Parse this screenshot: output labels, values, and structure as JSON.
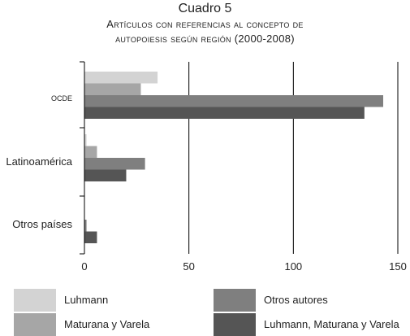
{
  "title_lines": [
    "Cuadro 5",
    "Artículos con referencias al concepto de",
    "autopoiesis según región (2000-2008)"
  ],
  "colors": {
    "Luhmann": "#d3d3d3",
    "Maturana y Varela": "#a6a6a6",
    "Otros autores": "#7f7f7f",
    "Luhmann, Maturana y Varela": "#555555"
  },
  "chart_data": {
    "type": "bar",
    "orientation": "horizontal",
    "categories": [
      "OCDE",
      "Latinoamérica",
      "Otros países"
    ],
    "series": [
      {
        "name": "Luhmann",
        "values": [
          35,
          1,
          0
        ]
      },
      {
        "name": "Maturana y Varela",
        "values": [
          27,
          6,
          0
        ]
      },
      {
        "name": "Otros autores",
        "values": [
          143,
          29,
          1
        ]
      },
      {
        "name": "Luhmann, Maturana y Varela",
        "values": [
          134,
          20,
          6
        ]
      }
    ],
    "xlim": [
      0,
      150
    ],
    "xticks": [
      0,
      50,
      100,
      150
    ],
    "grid": "vertical",
    "legend_position": "bottom"
  }
}
